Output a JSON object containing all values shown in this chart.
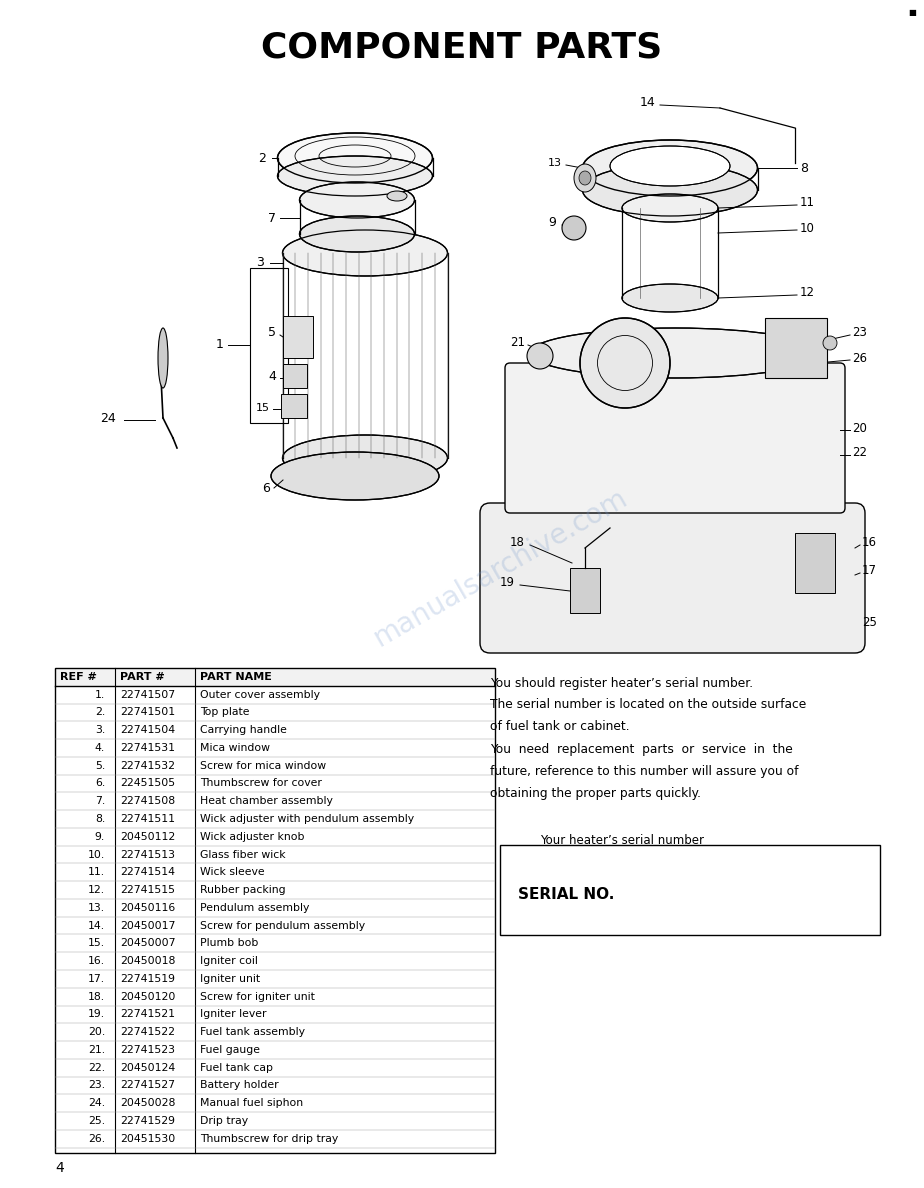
{
  "title": "COMPONENT PARTS",
  "title_fontsize": 26,
  "title_fontweight": "bold",
  "background_color": "#ffffff",
  "page_number": "4",
  "table_headers": [
    "REF #",
    "PART #",
    "PART NAME"
  ],
  "parts": [
    [
      "1.",
      "22741507",
      "Outer cover assembly"
    ],
    [
      "2.",
      "22741501",
      "Top plate"
    ],
    [
      "3.",
      "22741504",
      "Carrying handle"
    ],
    [
      "4.",
      "22741531",
      "Mica window"
    ],
    [
      "5.",
      "22741532",
      "Screw for mica window"
    ],
    [
      "6.",
      "22451505",
      "Thumbscrew for cover"
    ],
    [
      "7.",
      "22741508",
      "Heat chamber assembly"
    ],
    [
      "8.",
      "22741511",
      "Wick adjuster with pendulum assembly"
    ],
    [
      "9.",
      "20450112",
      "Wick adjuster knob"
    ],
    [
      "10.",
      "22741513",
      "Glass fiber wick"
    ],
    [
      "11.",
      "22741514",
      "Wick sleeve"
    ],
    [
      "12.",
      "22741515",
      "Rubber packing"
    ],
    [
      "13.",
      "20450116",
      "Pendulum assembly"
    ],
    [
      "14.",
      "20450017",
      "Screw for pendulum assembly"
    ],
    [
      "15.",
      "20450007",
      "Plumb bob"
    ],
    [
      "16.",
      "20450018",
      "Igniter coil"
    ],
    [
      "17.",
      "22741519",
      "Igniter unit"
    ],
    [
      "18.",
      "20450120",
      "Screw for igniter unit"
    ],
    [
      "19.",
      "22741521",
      "Igniter lever"
    ],
    [
      "20.",
      "22741522",
      "Fuel tank assembly"
    ],
    [
      "21.",
      "22741523",
      "Fuel gauge"
    ],
    [
      "22.",
      "20450124",
      "Fuel tank cap"
    ],
    [
      "23.",
      "22741527",
      "Battery holder"
    ],
    [
      "24.",
      "20450028",
      "Manual fuel siphon"
    ],
    [
      "25.",
      "22741529",
      "Drip tray"
    ],
    [
      "26.",
      "20451530",
      "Thumbscrew for drip tray"
    ]
  ],
  "right_text": [
    "You should register heater’s serial number.",
    "The serial number is located on the outside surface",
    "of fuel tank or cabinet.",
    "You need replacement parts or service in the",
    "future, reference to this number will assure you of",
    "obtaining the proper parts quickly."
  ],
  "right_text_justified": [
    "You should register heater’s serial number.",
    "The serial number is located on the outside surface",
    "of fuel tank or cabinet.",
    "You  need  replacement  parts  or  service  in  the",
    "future, reference to this number will assure you of",
    "obtaining the proper parts quickly."
  ],
  "serial_label": "Your heater’s serial number",
  "serial_box_text": "SERIAL NO.",
  "watermark": "manualsarchive.com",
  "watermark_color": "#7799cc",
  "watermark_alpha": 0.25
}
